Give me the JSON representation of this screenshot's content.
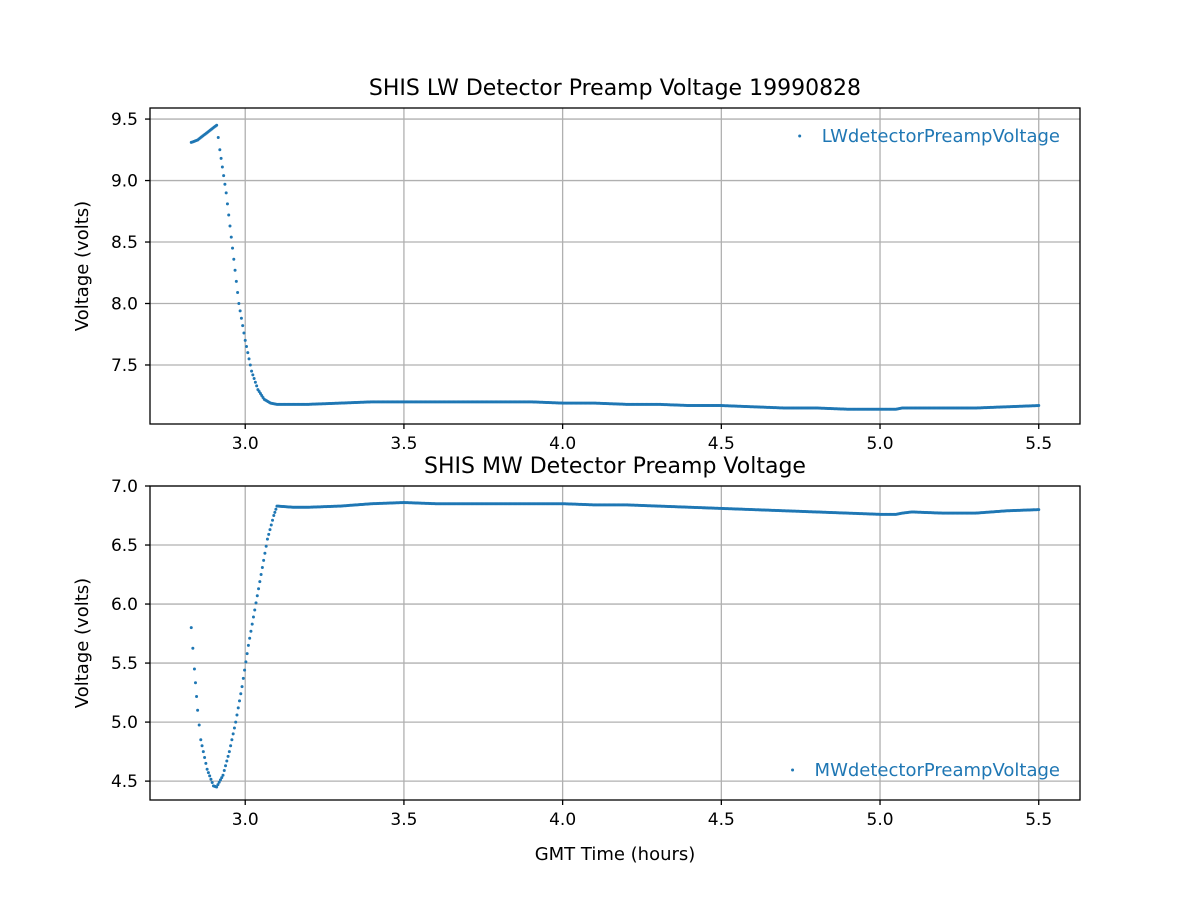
{
  "figure": {
    "background": "#ffffff",
    "series_color": "#1f77b4"
  },
  "chart_data": [
    {
      "type": "scatter",
      "title": "SHIS LW Detector Preamp Voltage 19990828",
      "xlabel": "",
      "ylabel": "Voltage (volts)",
      "xlim": [
        2.7,
        5.63
      ],
      "ylim": [
        7.02,
        9.59
      ],
      "xticks": [
        3.0,
        3.5,
        4.0,
        4.5,
        5.0,
        5.5
      ],
      "xtick_labels": [
        "3.0",
        "3.5",
        "4.0",
        "4.5",
        "5.0",
        "5.5"
      ],
      "yticks": [
        7.5,
        8.0,
        8.5,
        9.0,
        9.5
      ],
      "ytick_labels": [
        "7.5",
        "8.0",
        "8.5",
        "9.0",
        "9.5"
      ],
      "grid": true,
      "legend": "upper-right",
      "series": [
        {
          "name": "LWdetectorPreampVoltage",
          "color": "#1f77b4",
          "marker": "point",
          "points": [
            [
              2.83,
              9.31
            ],
            [
              2.85,
              9.33
            ],
            [
              2.87,
              9.37
            ],
            [
              2.89,
              9.41
            ],
            [
              2.91,
              9.45
            ],
            [
              2.92,
              9.25
            ],
            [
              2.94,
              8.9
            ],
            [
              2.96,
              8.45
            ],
            [
              2.98,
              8.0
            ],
            [
              3.0,
              7.7
            ],
            [
              3.02,
              7.45
            ],
            [
              3.04,
              7.3
            ],
            [
              3.06,
              7.22
            ],
            [
              3.08,
              7.19
            ],
            [
              3.1,
              7.18
            ],
            [
              3.2,
              7.18
            ],
            [
              3.3,
              7.19
            ],
            [
              3.4,
              7.2
            ],
            [
              3.5,
              7.2
            ],
            [
              3.6,
              7.2
            ],
            [
              3.7,
              7.2
            ],
            [
              3.8,
              7.2
            ],
            [
              3.9,
              7.2
            ],
            [
              4.0,
              7.19
            ],
            [
              4.1,
              7.19
            ],
            [
              4.2,
              7.18
            ],
            [
              4.3,
              7.18
            ],
            [
              4.4,
              7.17
            ],
            [
              4.5,
              7.17
            ],
            [
              4.6,
              7.16
            ],
            [
              4.7,
              7.15
            ],
            [
              4.8,
              7.15
            ],
            [
              4.9,
              7.14
            ],
            [
              5.0,
              7.14
            ],
            [
              5.05,
              7.14
            ],
            [
              5.07,
              7.15
            ],
            [
              5.1,
              7.15
            ],
            [
              5.2,
              7.15
            ],
            [
              5.3,
              7.15
            ],
            [
              5.4,
              7.16
            ],
            [
              5.5,
              7.17
            ]
          ]
        }
      ]
    },
    {
      "type": "scatter",
      "title": "SHIS MW Detector Preamp Voltage",
      "xlabel": "GMT Time (hours)",
      "ylabel": "Voltage (volts)",
      "xlim": [
        2.7,
        5.63
      ],
      "ylim": [
        4.34,
        7.0
      ],
      "xticks": [
        3.0,
        3.5,
        4.0,
        4.5,
        5.0,
        5.5
      ],
      "xtick_labels": [
        "3.0",
        "3.5",
        "4.0",
        "4.5",
        "5.0",
        "5.5"
      ],
      "yticks": [
        4.5,
        5.0,
        5.5,
        6.0,
        6.5,
        7.0
      ],
      "ytick_labels": [
        "4.5",
        "5.0",
        "5.5",
        "6.0",
        "6.5",
        "7.0"
      ],
      "grid": true,
      "legend": "lower-right",
      "series": [
        {
          "name": "MWdetectorPreampVoltage",
          "color": "#1f77b4",
          "marker": "point",
          "points": [
            [
              2.83,
              5.8
            ],
            [
              2.84,
              5.45
            ],
            [
              2.85,
              5.1
            ],
            [
              2.86,
              4.85
            ],
            [
              2.88,
              4.6
            ],
            [
              2.9,
              4.46
            ],
            [
              2.91,
              4.45
            ],
            [
              2.93,
              4.55
            ],
            [
              2.95,
              4.75
            ],
            [
              2.97,
              5.0
            ],
            [
              2.99,
              5.3
            ],
            [
              3.01,
              5.65
            ],
            [
              3.03,
              5.95
            ],
            [
              3.05,
              6.25
            ],
            [
              3.07,
              6.55
            ],
            [
              3.09,
              6.75
            ],
            [
              3.1,
              6.83
            ],
            [
              3.15,
              6.82
            ],
            [
              3.2,
              6.82
            ],
            [
              3.3,
              6.83
            ],
            [
              3.4,
              6.85
            ],
            [
              3.5,
              6.86
            ],
            [
              3.6,
              6.85
            ],
            [
              3.7,
              6.85
            ],
            [
              3.8,
              6.85
            ],
            [
              3.9,
              6.85
            ],
            [
              4.0,
              6.85
            ],
            [
              4.1,
              6.84
            ],
            [
              4.2,
              6.84
            ],
            [
              4.3,
              6.83
            ],
            [
              4.4,
              6.82
            ],
            [
              4.5,
              6.81
            ],
            [
              4.6,
              6.8
            ],
            [
              4.7,
              6.79
            ],
            [
              4.8,
              6.78
            ],
            [
              4.9,
              6.77
            ],
            [
              5.0,
              6.76
            ],
            [
              5.05,
              6.76
            ],
            [
              5.07,
              6.77
            ],
            [
              5.1,
              6.78
            ],
            [
              5.2,
              6.77
            ],
            [
              5.3,
              6.77
            ],
            [
              5.4,
              6.79
            ],
            [
              5.5,
              6.8
            ]
          ]
        }
      ]
    }
  ]
}
